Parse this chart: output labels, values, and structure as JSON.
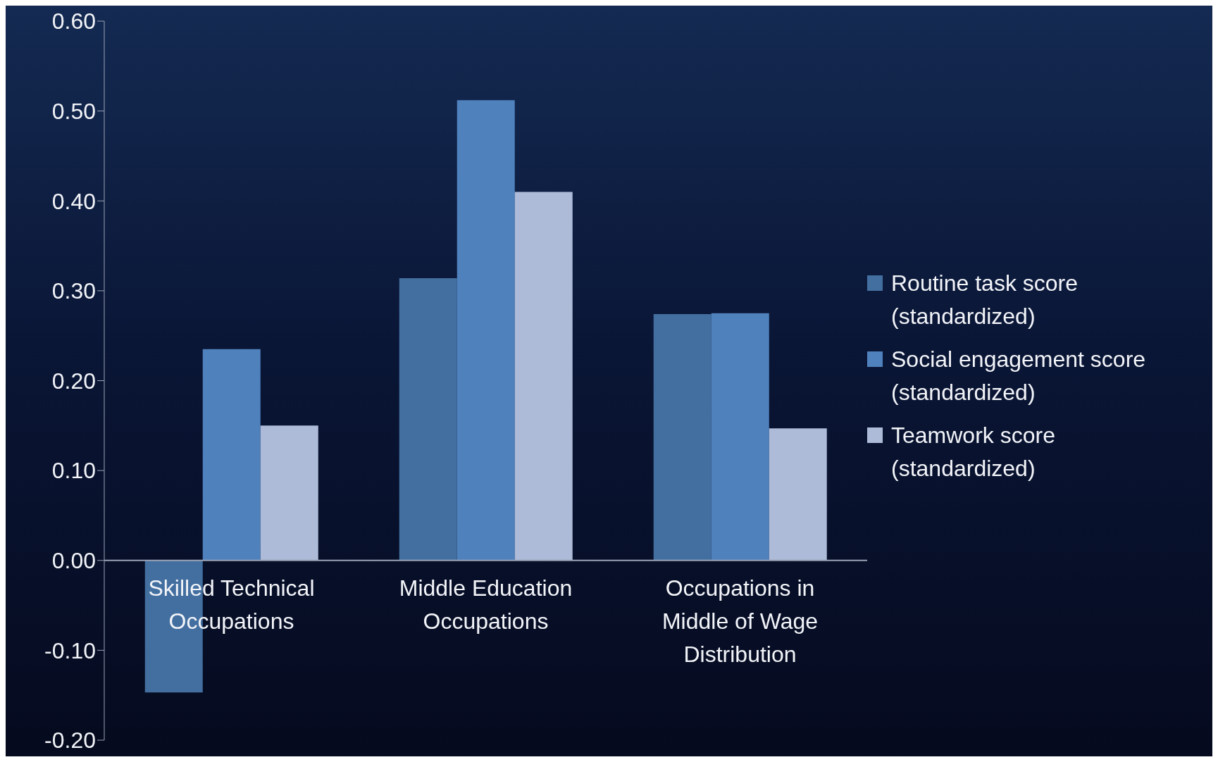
{
  "chart_data": {
    "type": "bar",
    "categories": [
      "Skilled Technical Occupations",
      "Middle Education Occupations",
      "Occupations in Middle of Wage Distribution"
    ],
    "series": [
      {
        "name": "Routine task score (standardized)",
        "color": "#436fa0",
        "values": [
          -0.147,
          0.314,
          0.274
        ]
      },
      {
        "name": "Social engagement score (standardized)",
        "color": "#4f81bd",
        "values": [
          0.235,
          0.512,
          0.275
        ]
      },
      {
        "name": "Teamwork score (standardized)",
        "color": "#adbbd9",
        "values": [
          0.15,
          0.41,
          0.147
        ]
      }
    ],
    "ylim": [
      -0.2,
      0.6
    ],
    "yticks": [
      {
        "value": -0.2,
        "label": "-0.20"
      },
      {
        "value": -0.1,
        "label": "-0.10"
      },
      {
        "value": 0,
        "label": "0.00"
      },
      {
        "value": 0.1,
        "label": "0.10"
      },
      {
        "value": 0.2,
        "label": "0.20"
      },
      {
        "value": 0.3,
        "label": "0.30"
      },
      {
        "value": 0.4,
        "label": "0.40"
      },
      {
        "value": 0.5,
        "label": "0.50"
      },
      {
        "value": 0.6,
        "label": "0.60"
      }
    ],
    "grid": false,
    "legend": "right"
  }
}
